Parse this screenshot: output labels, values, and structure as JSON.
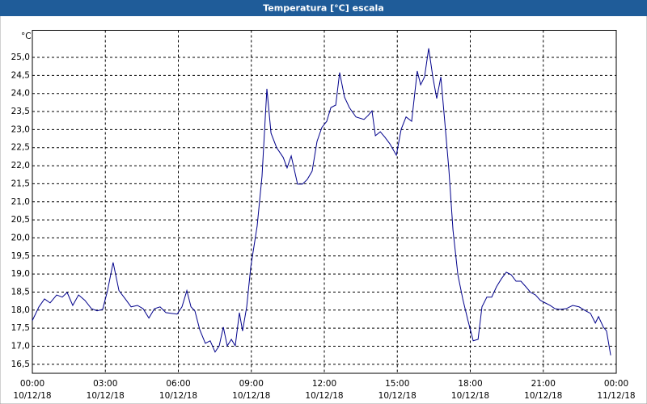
{
  "chart_data": {
    "type": "line",
    "title": "Temperatura [°C] escala",
    "y_unit": "°C",
    "color": "#00008b",
    "grid": true,
    "xlim": [
      0,
      24
    ],
    "ylim": [
      16.25,
      25.75
    ],
    "xticks": [
      {
        "value": 0,
        "label": "00:00"
      },
      {
        "value": 3,
        "label": "03:00"
      },
      {
        "value": 6,
        "label": "06:00"
      },
      {
        "value": 9,
        "label": "09:00"
      },
      {
        "value": 12,
        "label": "12:00"
      },
      {
        "value": 15,
        "label": "15:00"
      },
      {
        "value": 18,
        "label": "18:00"
      },
      {
        "value": 21,
        "label": "21:00"
      },
      {
        "value": 24,
        "label": "00:00"
      }
    ],
    "xtick_dates": [
      "10/12/18",
      "10/12/18",
      "10/12/18",
      "10/12/18",
      "10/12/18",
      "10/12/18",
      "10/12/18",
      "10/12/18",
      "11/12/18"
    ],
    "yticks": [
      {
        "value": 16.5,
        "label": "16,5"
      },
      {
        "value": 17,
        "label": "17,0"
      },
      {
        "value": 17.5,
        "label": "17,5"
      },
      {
        "value": 18,
        "label": "18,0"
      },
      {
        "value": 18.5,
        "label": "18,5"
      },
      {
        "value": 19,
        "label": "19,0"
      },
      {
        "value": 19.5,
        "label": "19,5"
      },
      {
        "value": 20,
        "label": "20,0"
      },
      {
        "value": 20.5,
        "label": "20,5"
      },
      {
        "value": 21,
        "label": "21,0"
      },
      {
        "value": 21.5,
        "label": "21,5"
      },
      {
        "value": 22,
        "label": "22,0"
      },
      {
        "value": 22.5,
        "label": "22,5"
      },
      {
        "value": 23,
        "label": "23,0"
      },
      {
        "value": 23.5,
        "label": "23,5"
      },
      {
        "value": 24,
        "label": "24,0"
      },
      {
        "value": 24.5,
        "label": "24,5"
      },
      {
        "value": 25,
        "label": "25,0"
      }
    ],
    "x": [
      0,
      0.27,
      0.5,
      0.73,
      1.0,
      1.23,
      1.43,
      1.66,
      1.9,
      2.16,
      2.43,
      2.66,
      2.89,
      3.09,
      3.32,
      3.56,
      3.82,
      4.06,
      4.32,
      4.55,
      4.79,
      5.02,
      5.25,
      5.49,
      5.72,
      5.95,
      6.15,
      6.35,
      6.52,
      6.68,
      6.88,
      7.11,
      7.31,
      7.51,
      7.68,
      7.85,
      8.01,
      8.18,
      8.34,
      8.51,
      8.64,
      8.81,
      8.98,
      9.24,
      9.44,
      9.64,
      9.81,
      10.04,
      10.31,
      10.47,
      10.64,
      10.9,
      11.1,
      11.3,
      11.5,
      11.7,
      11.9,
      12.1,
      12.27,
      12.47,
      12.63,
      12.83,
      13.03,
      13.3,
      13.63,
      13.8,
      13.96,
      14.1,
      14.3,
      14.49,
      14.69,
      14.96,
      15.16,
      15.36,
      15.59,
      15.82,
      15.96,
      16.12,
      16.29,
      16.46,
      16.62,
      16.79,
      16.95,
      17.12,
      17.29,
      17.49,
      17.69,
      17.89,
      18.12,
      18.32,
      18.48,
      18.68,
      18.88,
      19.08,
      19.28,
      19.48,
      19.68,
      19.88,
      20.08,
      20.28,
      20.48,
      20.68,
      20.88,
      21.08,
      21.28,
      21.48,
      21.68,
      21.94,
      22.21,
      22.47,
      22.74,
      22.94,
      23.14,
      23.27,
      23.47,
      23.6,
      23.77
    ],
    "values": [
      17.71,
      18.09,
      18.31,
      18.2,
      18.42,
      18.36,
      18.49,
      18.13,
      18.42,
      18.27,
      18.04,
      17.98,
      18.02,
      18.54,
      19.32,
      18.54,
      18.31,
      18.09,
      18.13,
      18.04,
      17.78,
      18.04,
      18.09,
      17.93,
      17.91,
      17.89,
      18.09,
      18.54,
      18.09,
      17.98,
      17.46,
      17.08,
      17.15,
      16.84,
      17.01,
      17.53,
      17.01,
      17.19,
      17.01,
      17.93,
      17.42,
      18.09,
      19.21,
      20.33,
      21.71,
      24.13,
      22.9,
      22.5,
      22.23,
      21.94,
      22.27,
      21.49,
      21.49,
      21.62,
      21.85,
      22.67,
      23.06,
      23.23,
      23.61,
      23.68,
      24.58,
      23.9,
      23.61,
      23.35,
      23.28,
      23.39,
      23.52,
      22.83,
      22.94,
      22.79,
      22.61,
      22.29,
      23.01,
      23.35,
      23.23,
      24.62,
      24.24,
      24.46,
      25.25,
      24.46,
      23.86,
      24.46,
      23.23,
      21.89,
      20.21,
      18.98,
      18.31,
      17.75,
      17.15,
      17.19,
      18.09,
      18.36,
      18.36,
      18.65,
      18.87,
      19.05,
      18.98,
      18.8,
      18.8,
      18.65,
      18.49,
      18.42,
      18.27,
      18.2,
      18.13,
      18.04,
      18.02,
      18.04,
      18.13,
      18.09,
      17.98,
      17.91,
      17.64,
      17.82,
      17.53,
      17.42,
      16.75
    ]
  }
}
